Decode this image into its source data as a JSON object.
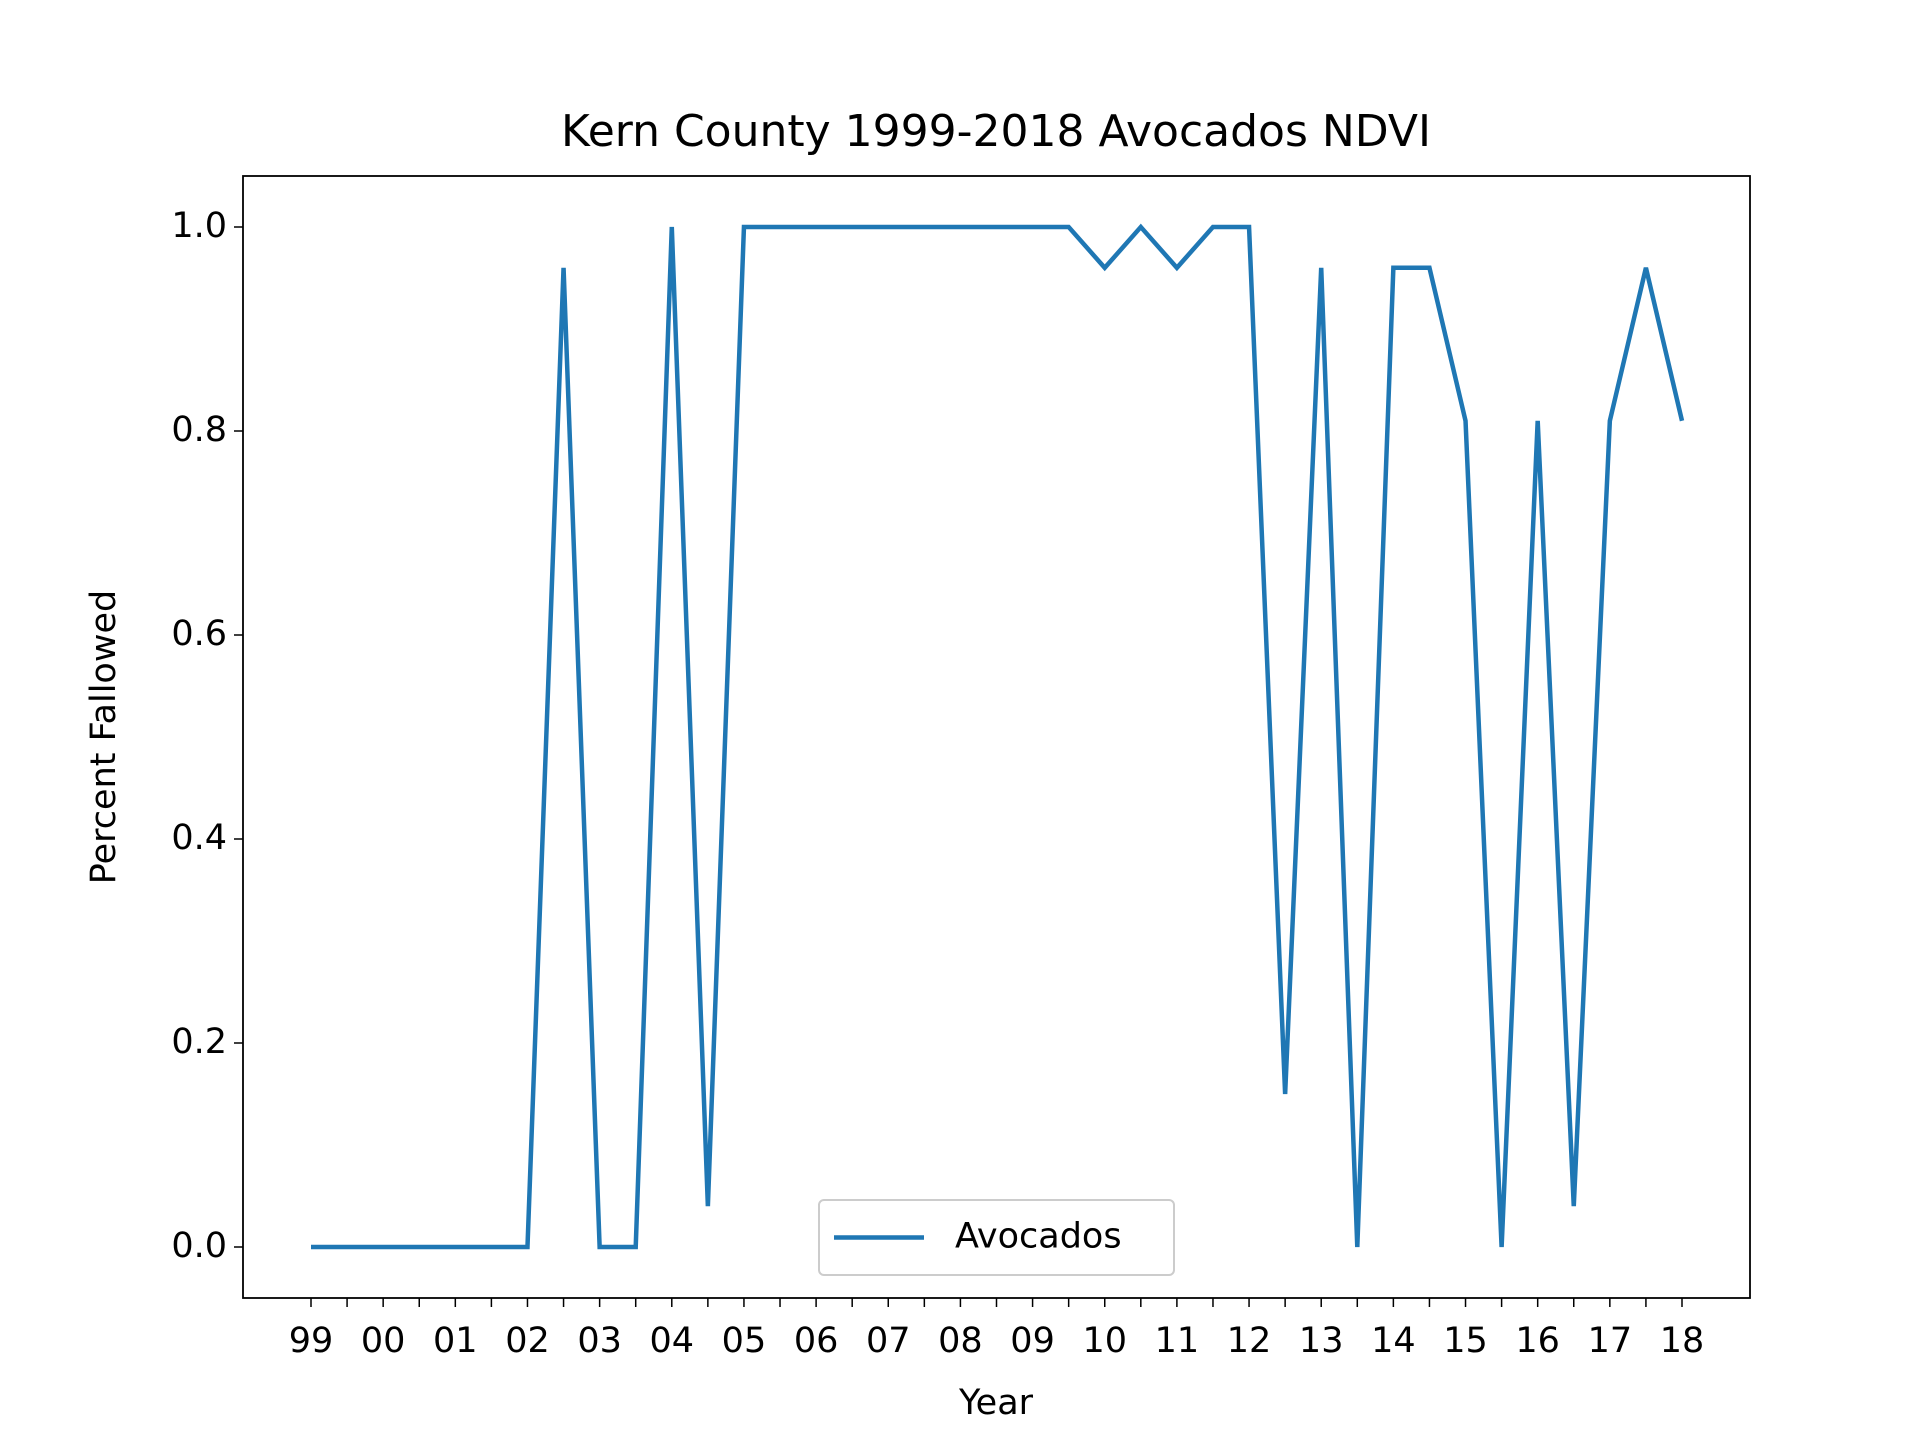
{
  "chart_data": {
    "type": "line",
    "title": "Kern County 1999-2018 Avocados NDVI",
    "xlabel": "Year",
    "ylabel": "Percent Fallowed",
    "categories": [
      "99",
      null,
      "00",
      null,
      "01",
      null,
      "02",
      null,
      "03",
      null,
      "04",
      null,
      "05",
      null,
      "06",
      null,
      "07",
      null,
      "08",
      null,
      "09",
      null,
      "10",
      null,
      "11",
      null,
      "12",
      null,
      "13",
      null,
      "14",
      null,
      "15",
      null,
      "16",
      null,
      "17",
      null,
      "18"
    ],
    "series": [
      {
        "name": "Avocados",
        "color": "#1f77b4",
        "values": [
          0,
          0,
          0,
          0,
          0,
          0,
          0,
          0.96,
          0,
          0,
          1.0,
          0.04,
          1.0,
          1.0,
          1.0,
          1.0,
          1.0,
          1.0,
          1.0,
          1.0,
          1.0,
          1.0,
          0.96,
          1.0,
          0.96,
          1.0,
          1.0,
          0.15,
          0.96,
          0,
          0.96,
          0.96,
          0.81,
          0,
          0.81,
          0.04,
          0.81,
          0.96,
          0.81
        ]
      }
    ],
    "ylim": [
      -0.05,
      1.05
    ],
    "yticks": [
      {
        "value": 0,
        "label": "0.0"
      },
      0.2,
      0.4,
      0.6,
      0.8,
      {
        "value": 1,
        "label": "1.0"
      }
    ],
    "grid": false,
    "legend": "lower center"
  }
}
